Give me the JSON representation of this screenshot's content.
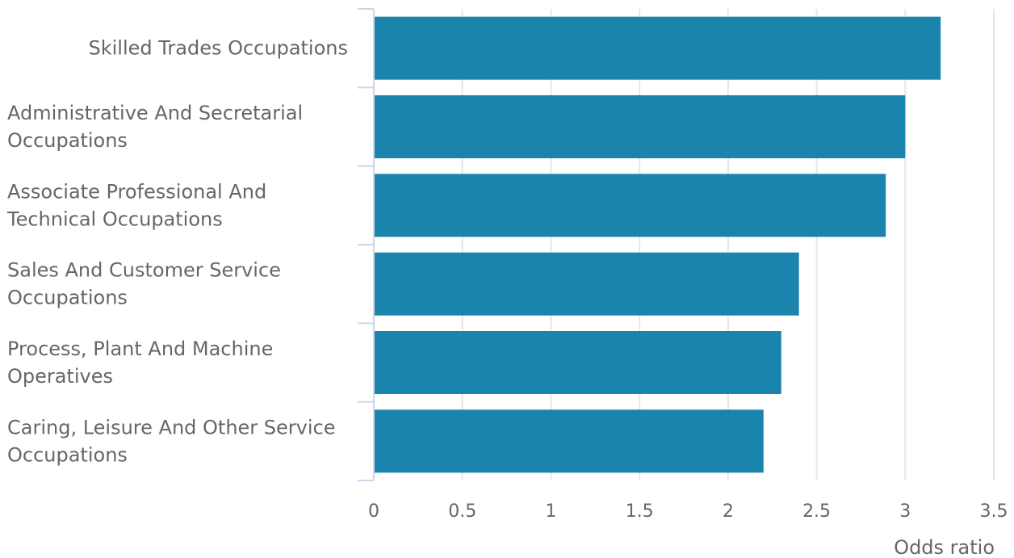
{
  "chart_data": {
    "type": "bar",
    "orientation": "horizontal",
    "categories": [
      "Skilled Trades Occupations",
      "Administrative And Secretarial Occupations",
      "Associate Professional And Technical Occupations",
      "Sales And Customer Service Occupations",
      "Process, Plant And Machine Operatives",
      "Caring, Leisure And Other Service Occupations"
    ],
    "category_lines": [
      [
        "Skilled Trades Occupations"
      ],
      [
        "Administrative And Secretarial",
        "Occupations"
      ],
      [
        "Associate Professional And",
        "Technical Occupations"
      ],
      [
        "Sales And Customer Service",
        "Occupations"
      ],
      [
        "Process, Plant And Machine",
        "Operatives"
      ],
      [
        "Caring, Leisure And Other Service",
        "Occupations"
      ]
    ],
    "values": [
      3.2,
      3.0,
      2.89,
      2.4,
      2.3,
      2.2
    ],
    "xlabel": "Odds ratio",
    "ylabel": "",
    "title": "",
    "xlim": [
      0,
      3.5
    ],
    "xticks": [
      0,
      0.5,
      1,
      1.5,
      2,
      2.5,
      3,
      3.5
    ],
    "xtick_labels": [
      "0",
      "0.5",
      "1",
      "1.5",
      "2",
      "2.5",
      "3",
      "3.5"
    ],
    "grid": true,
    "legend": "none",
    "colors": {
      "bar": "#1b84ad",
      "grid": "#e6e6e6",
      "axis": "#ccd6eb",
      "text": "#666666"
    }
  }
}
